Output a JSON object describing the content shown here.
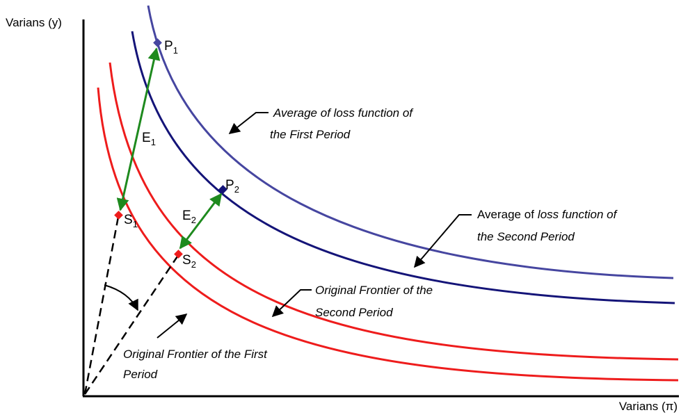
{
  "axes": {
    "y_label": "Varians (y)",
    "x_label": "Varians (π)"
  },
  "points": [
    {
      "letter": "P",
      "sub": "1"
    },
    {
      "letter": "P",
      "sub": "2"
    },
    {
      "letter": "S",
      "sub": "1"
    },
    {
      "letter": "S",
      "sub": "2"
    },
    {
      "letter": "E",
      "sub": "1"
    },
    {
      "letter": "E",
      "sub": "2"
    }
  ],
  "annotations": [
    {
      "line1": "Average of loss function of",
      "line2": "the First Period"
    },
    {
      "line1_plain": "Average of",
      "line1_italic": "loss function of",
      "line2": "the Second Period"
    },
    {
      "line1": "Original Frontier of the",
      "line2": "Second Period"
    },
    {
      "line1": "Original Frontier of the First",
      "line2": "Period"
    }
  ]
}
